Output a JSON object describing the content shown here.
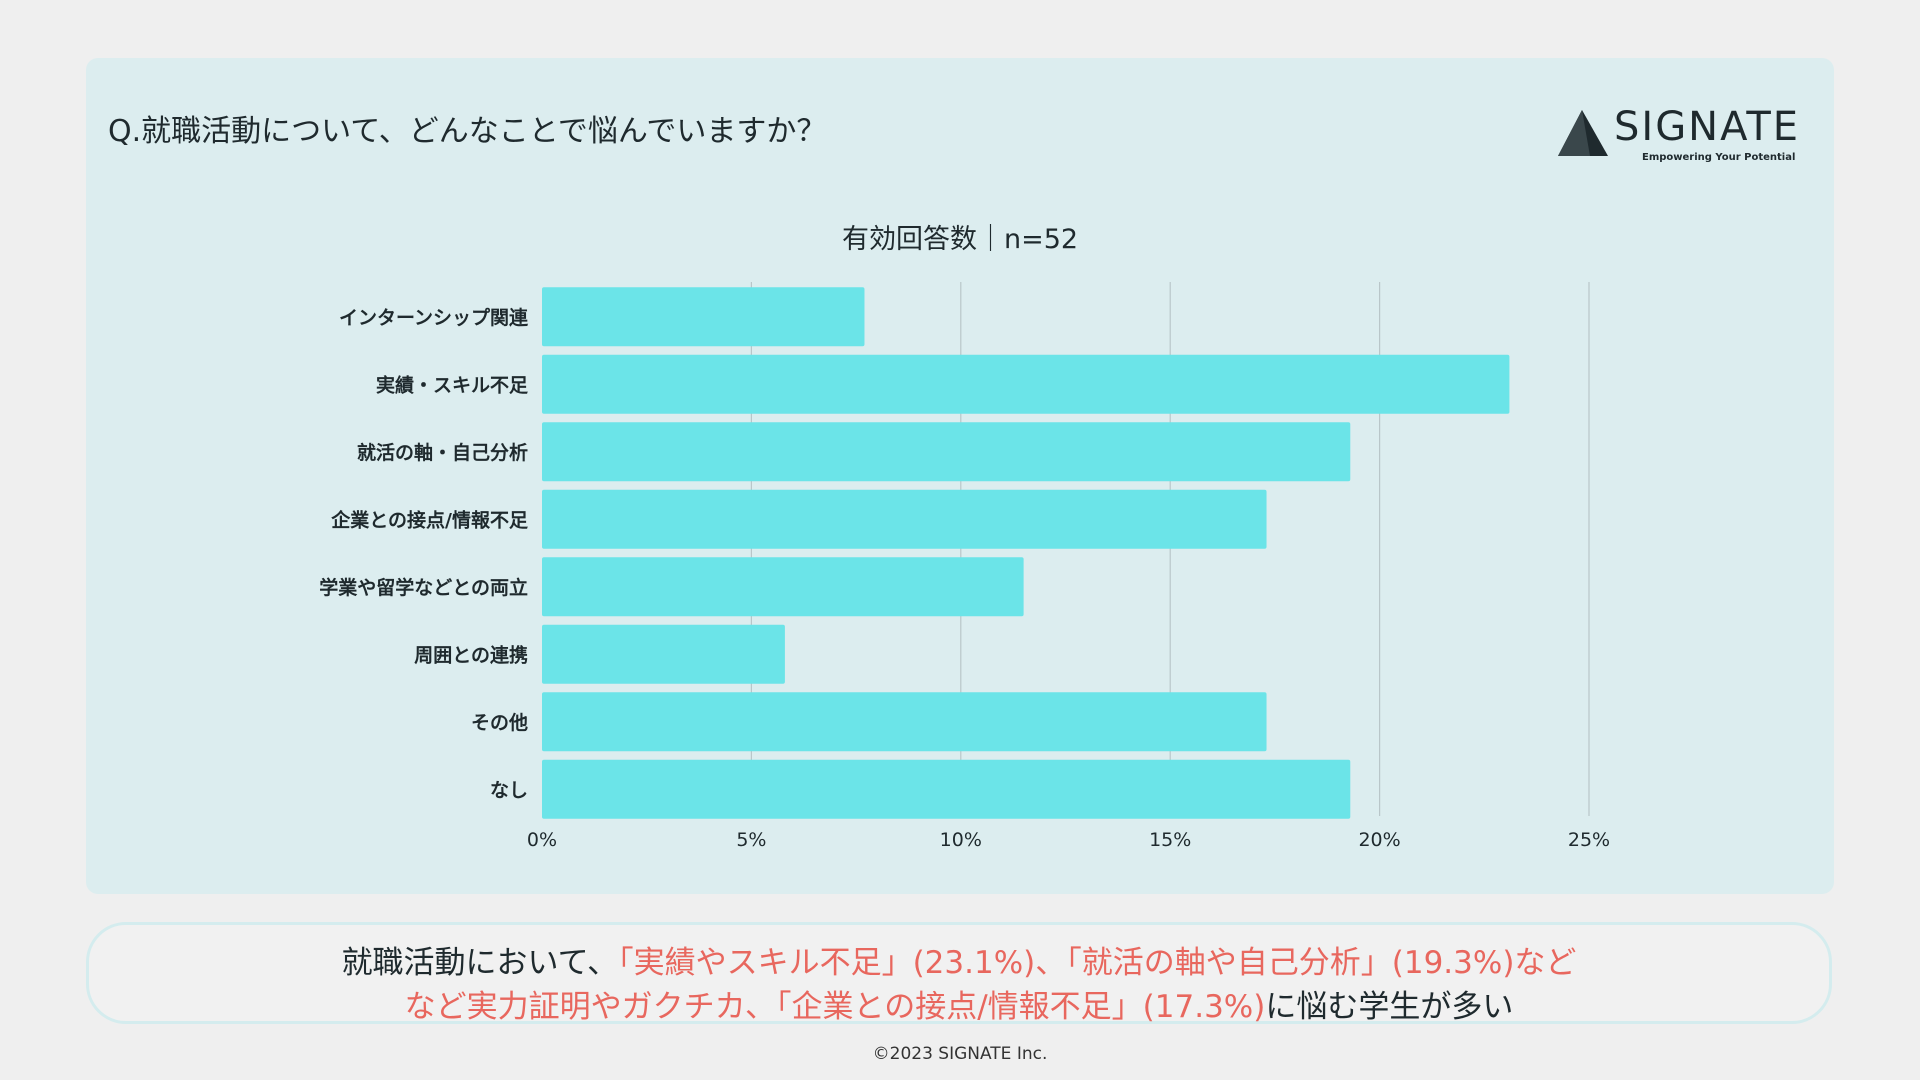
{
  "header": {
    "question": "Q.就職活動について、どんなことで悩んでいますか？",
    "logo_name": "SIGNATE",
    "logo_tagline": "Empowering Your Potential"
  },
  "chart_data": {
    "type": "bar",
    "orientation": "horizontal",
    "title": "有効回答数｜n=52",
    "categories": [
      "インターンシップ関連",
      "実績・スキル不足",
      "就活の軸・自己分析",
      "企業との接点/情報不足",
      "学業や留学などとの両立",
      "周囲との連携",
      "その他",
      "なし"
    ],
    "values": [
      7.7,
      23.1,
      19.3,
      17.3,
      11.5,
      5.8,
      17.3,
      19.3
    ],
    "xlim": [
      0,
      25
    ],
    "xticks": [
      0,
      5,
      10,
      15,
      20,
      25
    ],
    "tick_labels": [
      "0%",
      "5%",
      "10%",
      "15%",
      "20%",
      "25%"
    ],
    "grid": true,
    "bar_color": "#6be4e8",
    "grid_color": "#b9c6c9"
  },
  "summary": {
    "line1_normal": "就職活動において、",
    "line1_highlight": "「実績やスキル不足」(23.1%)、「就活の軸や自己分析」(19.3%)など",
    "line2_highlight": "など実力証明やガクチカ、「企業との接点/情報不足」(17.3%)",
    "line2_normal": "に悩む学生が多い",
    "highlight_color": "#e8675e"
  },
  "footer": {
    "copyright": "©2023 SIGNATE Inc."
  }
}
